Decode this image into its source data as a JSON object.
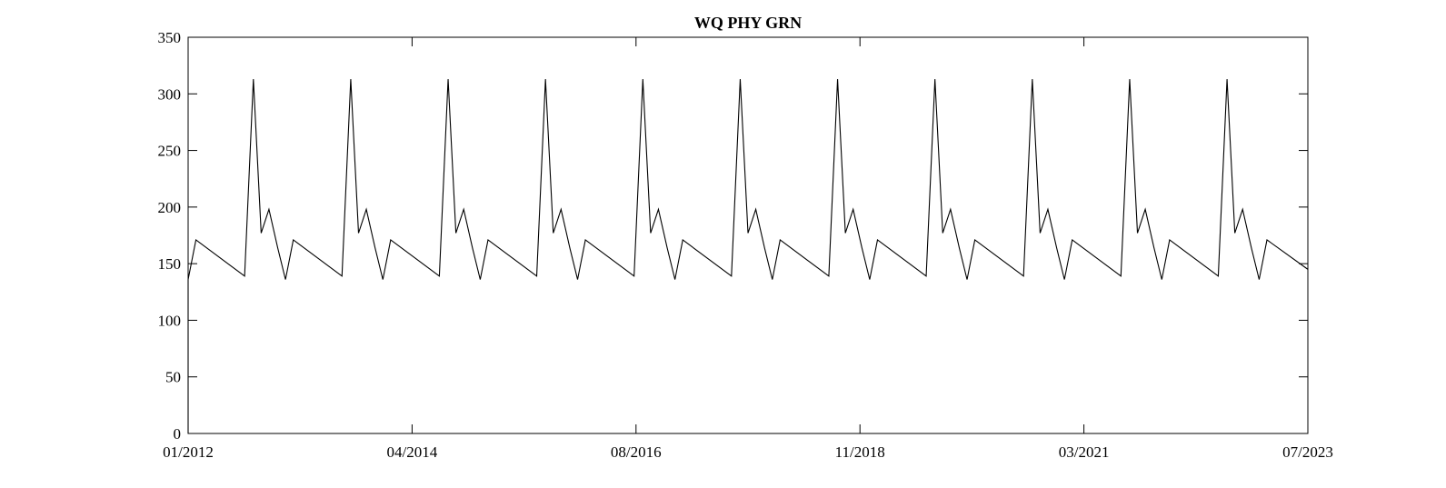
{
  "chart_data": {
    "type": "line",
    "title": "WQ PHY GRN",
    "xlabel": "",
    "ylabel": "",
    "xlim": [
      2012.0,
      2023.5
    ],
    "ylim": [
      0,
      350
    ],
    "grid": false,
    "legend": "none",
    "y_ticks": [
      0,
      50,
      100,
      150,
      200,
      250,
      300,
      350
    ],
    "x_ticks": [
      {
        "label": "01/2012",
        "value": 2012.0
      },
      {
        "label": "04/2014",
        "value": 2014.3
      },
      {
        "label": "08/2016",
        "value": 2016.6
      },
      {
        "label": "11/2018",
        "value": 2018.9
      },
      {
        "label": "03/2021",
        "value": 2021.2
      },
      {
        "label": "07/2023",
        "value": 2023.5
      }
    ],
    "line_color": "#000000",
    "series": [
      {
        "x": [
          2012.0,
          2012.0,
          2012.08,
          2012.58,
          2012.67,
          2012.75,
          2012.83,
          2012.92,
          2013.0,
          2013.08,
          2013.58,
          2013.67,
          2013.75,
          2013.83,
          2013.92,
          2014.0,
          2014.08,
          2014.58,
          2014.67,
          2014.75,
          2014.83,
          2014.92,
          2015.0,
          2015.08,
          2015.58,
          2015.67,
          2015.75,
          2015.83,
          2015.92,
          2016.0,
          2016.08,
          2016.58,
          2016.67,
          2016.75,
          2016.83,
          2016.92,
          2017.0,
          2017.08,
          2017.58,
          2017.67,
          2017.75,
          2017.83,
          2017.92,
          2018.0,
          2018.08,
          2018.58,
          2018.67,
          2018.75,
          2018.83,
          2018.92,
          2019.0,
          2019.08,
          2019.58,
          2019.67,
          2019.75,
          2019.83,
          2019.92,
          2020.0,
          2020.08,
          2020.58,
          2020.67,
          2020.75,
          2020.83,
          2020.92,
          2021.0,
          2021.08,
          2021.58,
          2021.67,
          2021.75,
          2021.83,
          2021.92,
          2022.0,
          2022.08,
          2022.58,
          2022.67,
          2022.75,
          2022.83,
          2022.92,
          2023.0,
          2023.08,
          2023.5
        ],
        "values": [
          0,
          136,
          171,
          139,
          313,
          177,
          198,
          164,
          136,
          171,
          139,
          313,
          177,
          198,
          164,
          136,
          171,
          139,
          313,
          177,
          198,
          164,
          136,
          171,
          139,
          313,
          177,
          198,
          164,
          136,
          171,
          139,
          313,
          177,
          198,
          164,
          136,
          171,
          139,
          313,
          177,
          198,
          164,
          136,
          171,
          139,
          313,
          177,
          198,
          164,
          136,
          171,
          139,
          313,
          177,
          198,
          164,
          136,
          171,
          139,
          313,
          177,
          198,
          164,
          136,
          171,
          139,
          313,
          177,
          198,
          164,
          136,
          171,
          139,
          313,
          177,
          198,
          164,
          136,
          171,
          145
        ]
      }
    ]
  }
}
